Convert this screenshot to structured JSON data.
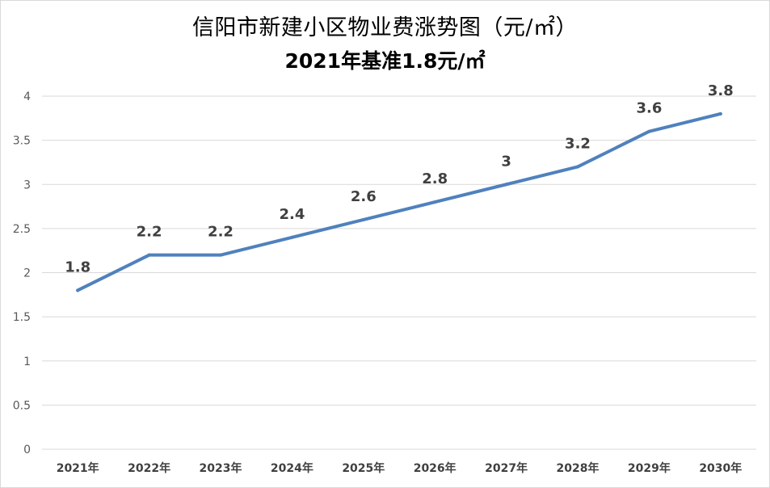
{
  "title_line1": "信阳市新建小区物业费涨势图（元/㎡）",
  "title_line2": "2021年基准1.8元/㎡",
  "colors": {
    "line": "#4f81bd",
    "grid": "#d9d9d9",
    "tick_text": "#595959",
    "data_label_text": "#404040"
  },
  "chart_data": {
    "type": "line",
    "title": "信阳市新建小区物业费涨势图（元/㎡）",
    "subtitle": "2021年基准1.8元/㎡",
    "categories": [
      "2021年",
      "2022年",
      "2023年",
      "2024年",
      "2025年",
      "2026年",
      "2027年",
      "2028年",
      "2029年",
      "2030年"
    ],
    "series": [
      {
        "values": [
          1.8,
          2.2,
          2.2,
          2.4,
          2.6,
          2.8,
          3,
          3.2,
          3.6,
          3.8
        ]
      }
    ],
    "data_labels": [
      "1.8",
      "2.2",
      "2.2",
      "2.4",
      "2.6",
      "2.8",
      "3",
      "3.2",
      "3.6",
      "3.8"
    ],
    "y_ticks": [
      "0",
      "0.5",
      "1",
      "1.5",
      "2",
      "2.5",
      "3",
      "3.5",
      "4"
    ],
    "ylim": [
      0,
      4
    ],
    "y_step": 0.5,
    "grid": true,
    "legend": "none"
  }
}
